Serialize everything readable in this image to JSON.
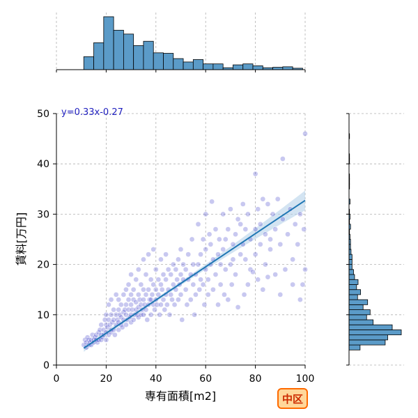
{
  "chart_data": {
    "type": "scatter",
    "title": "",
    "xlabel": "専有面積[m2]",
    "ylabel": "賃料[万円]",
    "xlim": [
      0,
      100
    ],
    "ylim": [
      0,
      50
    ],
    "x_ticks": [
      "0",
      "20",
      "40",
      "60",
      "80",
      "100"
    ],
    "y_ticks": [
      "0",
      "10",
      "20",
      "30",
      "40",
      "50"
    ],
    "grid": true,
    "regression": {
      "equation": "y=0.33x-0.27",
      "slope": 0.33,
      "intercept": -0.27,
      "x_start": 11,
      "x_end": 100
    },
    "badge": "中区",
    "colors": {
      "points": "#3b3bc8",
      "line": "#1f77b4",
      "band": "#aecde8",
      "hist": "#5b9bc8",
      "badge_border": "#ff6a00",
      "badge_fill": "#ffd79a",
      "badge_text": "#cc2a00"
    },
    "top_histogram": {
      "bin_edges": [
        11,
        15,
        19,
        23,
        27,
        31,
        35,
        39,
        43,
        47,
        51,
        55,
        59,
        63,
        67,
        71,
        75,
        79,
        83,
        87,
        91,
        95,
        99
      ],
      "counts": [
        27,
        56,
        110,
        82,
        74,
        50,
        59,
        35,
        34,
        23,
        16,
        21,
        12,
        12,
        4,
        10,
        12,
        8,
        4,
        5,
        6,
        3
      ]
    },
    "right_histogram": {
      "bin_edges": [
        3,
        4,
        5,
        6,
        7,
        8,
        9,
        10,
        11,
        12,
        13,
        14,
        15,
        16,
        17,
        18,
        19,
        20,
        21,
        22,
        23,
        24,
        25,
        26,
        27,
        28,
        29,
        30,
        31,
        32,
        33,
        34,
        35,
        36,
        37,
        38,
        39,
        40,
        41,
        42,
        43,
        44,
        45,
        46
      ],
      "counts": [
        22,
        72,
        77,
        104,
        86,
        48,
        35,
        42,
        28,
        37,
        17,
        23,
        15,
        18,
        11,
        9,
        6,
        6,
        6,
        4,
        3,
        3,
        2,
        1,
        3,
        1,
        2,
        1,
        0,
        2,
        0,
        0,
        1,
        1,
        1,
        0,
        0,
        1,
        1,
        0,
        0,
        0,
        1
      ]
    },
    "points": [
      [
        11,
        4
      ],
      [
        11.5,
        5
      ],
      [
        12,
        4.5
      ],
      [
        12,
        3.5
      ],
      [
        12.5,
        5.5
      ],
      [
        13,
        4
      ],
      [
        13,
        5
      ],
      [
        13.5,
        4.5
      ],
      [
        14,
        5
      ],
      [
        14,
        4
      ],
      [
        14.5,
        6
      ],
      [
        15,
        5
      ],
      [
        15,
        4.5
      ],
      [
        15.5,
        5.5
      ],
      [
        16,
        6
      ],
      [
        16,
        5
      ],
      [
        16.5,
        4.5
      ],
      [
        17,
        5
      ],
      [
        17,
        6.5
      ],
      [
        17.5,
        7
      ],
      [
        18,
        5
      ],
      [
        18,
        6
      ],
      [
        18,
        8
      ],
      [
        18.5,
        5.5
      ],
      [
        19,
        6
      ],
      [
        19,
        7
      ],
      [
        19.5,
        9
      ],
      [
        20,
        5
      ],
      [
        20,
        6.5
      ],
      [
        20,
        8
      ],
      [
        20,
        10
      ],
      [
        20.5,
        7.5
      ],
      [
        21,
        6
      ],
      [
        21,
        9
      ],
      [
        21,
        12
      ],
      [
        21.5,
        8
      ],
      [
        22,
        6.5
      ],
      [
        22,
        7
      ],
      [
        22,
        10
      ],
      [
        22,
        13
      ],
      [
        22.5,
        8.5
      ],
      [
        23,
        7
      ],
      [
        23,
        9
      ],
      [
        23,
        11
      ],
      [
        23.5,
        6
      ],
      [
        24,
        8
      ],
      [
        24,
        10
      ],
      [
        24,
        14
      ],
      [
        24.5,
        9
      ],
      [
        25,
        7
      ],
      [
        25,
        8.5
      ],
      [
        25,
        11
      ],
      [
        25,
        13
      ],
      [
        25.5,
        10
      ],
      [
        26,
        8
      ],
      [
        26,
        9.5
      ],
      [
        26,
        12
      ],
      [
        26.5,
        7.5
      ],
      [
        27,
        9
      ],
      [
        27,
        10.5
      ],
      [
        27,
        14
      ],
      [
        27.5,
        11
      ],
      [
        28,
        8
      ],
      [
        28,
        10
      ],
      [
        28,
        12
      ],
      [
        28,
        15
      ],
      [
        28.5,
        9
      ],
      [
        29,
        11
      ],
      [
        29,
        13
      ],
      [
        29,
        16
      ],
      [
        29.5,
        9.5
      ],
      [
        30,
        8.5
      ],
      [
        30,
        10
      ],
      [
        30,
        12
      ],
      [
        30,
        14
      ],
      [
        30,
        18
      ],
      [
        30.5,
        11
      ],
      [
        31,
        9
      ],
      [
        31,
        13
      ],
      [
        31,
        15
      ],
      [
        31.5,
        10
      ],
      [
        32,
        11
      ],
      [
        32,
        12.5
      ],
      [
        32,
        17
      ],
      [
        32.5,
        10
      ],
      [
        33,
        9.5
      ],
      [
        33,
        11.5
      ],
      [
        33,
        14
      ],
      [
        33,
        19
      ],
      [
        33.5,
        13
      ],
      [
        34,
        10
      ],
      [
        34,
        12
      ],
      [
        34,
        16
      ],
      [
        34.5,
        11
      ],
      [
        35,
        10
      ],
      [
        35,
        13
      ],
      [
        35,
        15
      ],
      [
        35,
        21
      ],
      [
        35.5,
        12
      ],
      [
        36,
        11
      ],
      [
        36,
        14
      ],
      [
        36,
        18
      ],
      [
        36.5,
        9
      ],
      [
        37,
        12
      ],
      [
        37,
        15
      ],
      [
        37,
        22
      ],
      [
        37.5,
        13
      ],
      [
        38,
        10
      ],
      [
        38,
        13
      ],
      [
        38,
        17
      ],
      [
        38.5,
        14
      ],
      [
        39,
        12
      ],
      [
        39,
        16
      ],
      [
        39,
        23
      ],
      [
        39.5,
        11
      ],
      [
        40,
        13
      ],
      [
        40,
        15
      ],
      [
        40,
        19
      ],
      [
        40.5,
        12
      ],
      [
        41,
        14
      ],
      [
        41,
        17
      ],
      [
        41.5,
        10
      ],
      [
        42,
        12
      ],
      [
        42,
        16
      ],
      [
        42,
        21
      ],
      [
        42.5,
        15
      ],
      [
        43,
        13
      ],
      [
        43,
        18
      ],
      [
        43.5,
        11
      ],
      [
        44,
        14
      ],
      [
        44,
        17
      ],
      [
        44,
        22
      ],
      [
        44.5,
        12
      ],
      [
        45,
        15
      ],
      [
        45,
        19
      ],
      [
        45.5,
        10
      ],
      [
        46,
        14
      ],
      [
        46,
        18
      ],
      [
        46.5,
        13
      ],
      [
        47,
        16
      ],
      [
        47,
        20
      ],
      [
        47.5,
        12
      ],
      [
        48,
        15
      ],
      [
        48,
        19
      ],
      [
        48.5,
        17
      ],
      [
        49,
        13
      ],
      [
        49,
        21
      ],
      [
        49.5,
        16
      ],
      [
        50,
        14
      ],
      [
        50,
        18
      ],
      [
        50,
        23
      ],
      [
        50.5,
        9
      ],
      [
        51,
        17
      ],
      [
        51,
        20
      ],
      [
        52,
        15
      ],
      [
        52,
        19
      ],
      [
        52.5,
        12
      ],
      [
        53,
        17
      ],
      [
        53,
        22
      ],
      [
        54,
        13
      ],
      [
        54,
        18
      ],
      [
        54.5,
        25
      ],
      [
        55,
        16
      ],
      [
        55,
        20
      ],
      [
        55.5,
        10
      ],
      [
        56,
        18
      ],
      [
        56,
        14
      ],
      [
        57,
        20
      ],
      [
        57,
        28
      ],
      [
        57.5,
        15
      ],
      [
        58,
        17
      ],
      [
        58,
        22
      ],
      [
        59,
        16
      ],
      [
        59,
        25
      ],
      [
        59.5,
        12
      ],
      [
        60,
        19
      ],
      [
        60,
        23
      ],
      [
        60,
        30
      ],
      [
        61,
        14
      ],
      [
        61,
        17
      ],
      [
        61.5,
        26
      ],
      [
        62,
        20
      ],
      [
        62,
        24
      ],
      [
        62.5,
        32.5
      ],
      [
        63,
        15
      ],
      [
        63,
        21
      ],
      [
        64,
        18
      ],
      [
        64,
        27
      ],
      [
        65,
        22
      ],
      [
        65,
        12
      ],
      [
        65.5,
        25
      ],
      [
        66,
        16
      ],
      [
        66,
        20
      ],
      [
        67,
        23
      ],
      [
        67,
        30
      ],
      [
        67.5,
        14
      ],
      [
        68,
        25
      ],
      [
        68,
        19
      ],
      [
        69,
        13
      ],
      [
        69,
        27
      ],
      [
        70,
        20
      ],
      [
        70,
        31
      ],
      [
        70.5,
        16
      ],
      [
        71,
        24
      ],
      [
        71,
        21
      ],
      [
        72,
        26
      ],
      [
        72,
        18
      ],
      [
        73,
        29
      ],
      [
        73,
        11.5
      ],
      [
        74,
        22
      ],
      [
        74,
        28
      ],
      [
        75,
        24
      ],
      [
        75,
        32
      ],
      [
        75.5,
        14
      ],
      [
        76,
        27
      ],
      [
        76,
        21
      ],
      [
        77,
        16
      ],
      [
        77,
        30
      ],
      [
        78,
        25
      ],
      [
        78,
        19
      ],
      [
        79,
        18.5
      ],
      [
        80,
        38
      ],
      [
        80,
        27
      ],
      [
        80,
        22
      ],
      [
        81,
        17
      ],
      [
        81,
        31
      ],
      [
        82,
        24
      ],
      [
        82,
        28
      ],
      [
        83,
        33
      ],
      [
        83,
        15
      ],
      [
        84,
        26
      ],
      [
        84,
        20
      ],
      [
        85,
        32
      ],
      [
        85,
        17.5
      ],
      [
        86,
        25
      ],
      [
        86,
        23
      ],
      [
        87,
        30
      ],
      [
        88,
        18
      ],
      [
        88,
        27
      ],
      [
        89,
        33
      ],
      [
        90,
        24
      ],
      [
        90,
        14
      ],
      [
        91,
        41
      ],
      [
        91,
        29
      ],
      [
        92,
        19
      ],
      [
        93,
        26
      ],
      [
        94,
        31
      ],
      [
        95,
        21
      ],
      [
        95,
        16
      ],
      [
        96,
        28
      ],
      [
        97,
        24
      ],
      [
        98,
        13
      ],
      [
        98,
        30
      ],
      [
        99,
        16
      ],
      [
        99.5,
        27
      ],
      [
        100,
        46
      ],
      [
        100,
        19
      ]
    ]
  }
}
